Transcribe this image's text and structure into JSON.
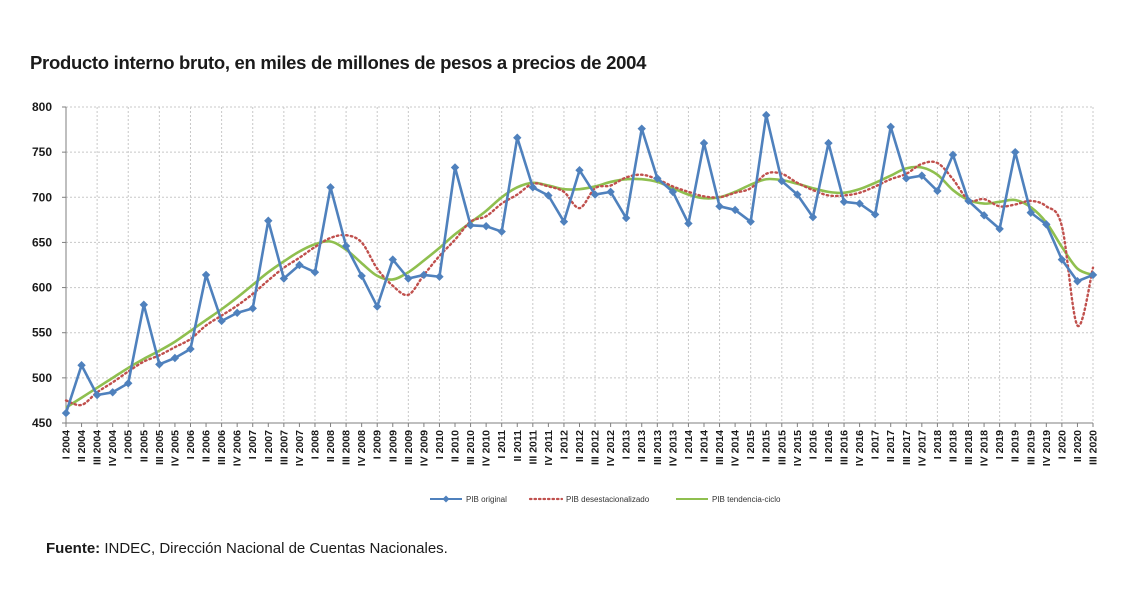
{
  "title": "Producto interno bruto, en miles de millones de pesos a precios de 2004",
  "source": {
    "label": "Fuente:",
    "text": "INDEC, Dirección Nacional de Cuentas Nacionales."
  },
  "colors": {
    "original": "#4f81bd",
    "desestacionalizado": "#c0504d",
    "tendencia": "#8fbf4f",
    "grid": "#c8c8c8",
    "axis": "#7f7f7f"
  },
  "chart_data": {
    "type": "line",
    "title": "Producto interno bruto, en miles de millones de pesos a precios de 2004",
    "xlabel": "",
    "ylabel": "",
    "ylim": [
      450,
      800
    ],
    "yticks": [
      450,
      500,
      550,
      600,
      650,
      700,
      750,
      800
    ],
    "grid": true,
    "legend_position": "bottom-center",
    "categories": [
      "I 2004",
      "II 2004",
      "III 2004",
      "IV 2004",
      "I 2005",
      "II 2005",
      "III 2005",
      "IV 2005",
      "I 2006",
      "II 2006",
      "III 2006",
      "IV 2006",
      "I 2007",
      "II 2007",
      "III 2007",
      "IV 2007",
      "I 2008",
      "II 2008",
      "III 2008",
      "IV 2008",
      "I 2009",
      "II 2009",
      "III 2009",
      "IV 2009",
      "I 2010",
      "II 2010",
      "III 2010",
      "IV 2010",
      "I 2011",
      "II 2011",
      "III 2011",
      "IV 2011",
      "I 2012",
      "II 2012",
      "III 2012",
      "IV 2012",
      "I 2013",
      "II 2013",
      "III 2013",
      "IV 2013",
      "I 2014",
      "II 2014",
      "III 2014",
      "IV 2014",
      "I 2015",
      "II 2015",
      "III 2015",
      "IV 2015",
      "I 2016",
      "II 2016",
      "III 2016",
      "IV 2016",
      "I 2017",
      "II 2017",
      "III 2017",
      "IV 2017",
      "I 2018",
      "II 2018",
      "III 2018",
      "IV 2018",
      "I 2019",
      "II 2019",
      "III 2019",
      "IV 2019",
      "I 2020",
      "II 2020",
      "III 2020"
    ],
    "series": [
      {
        "name": "PIB original",
        "style": "line-markers",
        "values": [
          461,
          514,
          481,
          484,
          494,
          581,
          515,
          522,
          532,
          614,
          563,
          572,
          577,
          674,
          610,
          625,
          617,
          711,
          646,
          613,
          579,
          631,
          610,
          614,
          612,
          733,
          669,
          668,
          662,
          766,
          711,
          702,
          673,
          730,
          703,
          706,
          677,
          776,
          721,
          706,
          671,
          760,
          690,
          686,
          673,
          791,
          718,
          703,
          678,
          760,
          695,
          693,
          681,
          778,
          721,
          724,
          707,
          747,
          696,
          680,
          665,
          750,
          683,
          670,
          631,
          607,
          614
        ]
      },
      {
        "name": "PIB desestacionalizado",
        "style": "dotted",
        "values": [
          475,
          470,
          484,
          495,
          507,
          518,
          525,
          534,
          543,
          558,
          569,
          580,
          593,
          608,
          622,
          633,
          645,
          655,
          658,
          650,
          621,
          602,
          592,
          614,
          635,
          653,
          673,
          679,
          693,
          703,
          715,
          712,
          706,
          688,
          710,
          713,
          722,
          725,
          720,
          712,
          706,
          701,
          700,
          705,
          710,
          726,
          726,
          716,
          708,
          702,
          702,
          705,
          712,
          720,
          726,
          737,
          738,
          720,
          697,
          698,
          690,
          692,
          696,
          690,
          668,
          558,
          622
        ]
      },
      {
        "name": "PIB tendencia-ciclo",
        "style": "solid",
        "values": [
          467,
          478,
          489,
          500,
          511,
          521,
          530,
          540,
          552,
          564,
          576,
          589,
          603,
          617,
          629,
          640,
          648,
          651,
          642,
          627,
          613,
          609,
          617,
          630,
          644,
          659,
          672,
          685,
          700,
          711,
          716,
          713,
          709,
          709,
          712,
          717,
          720,
          720,
          717,
          710,
          703,
          699,
          700,
          706,
          714,
          720,
          719,
          715,
          710,
          706,
          705,
          709,
          716,
          724,
          732,
          733,
          725,
          708,
          697,
          693,
          695,
          697,
          689,
          672,
          645,
          621,
          614
        ]
      }
    ]
  }
}
